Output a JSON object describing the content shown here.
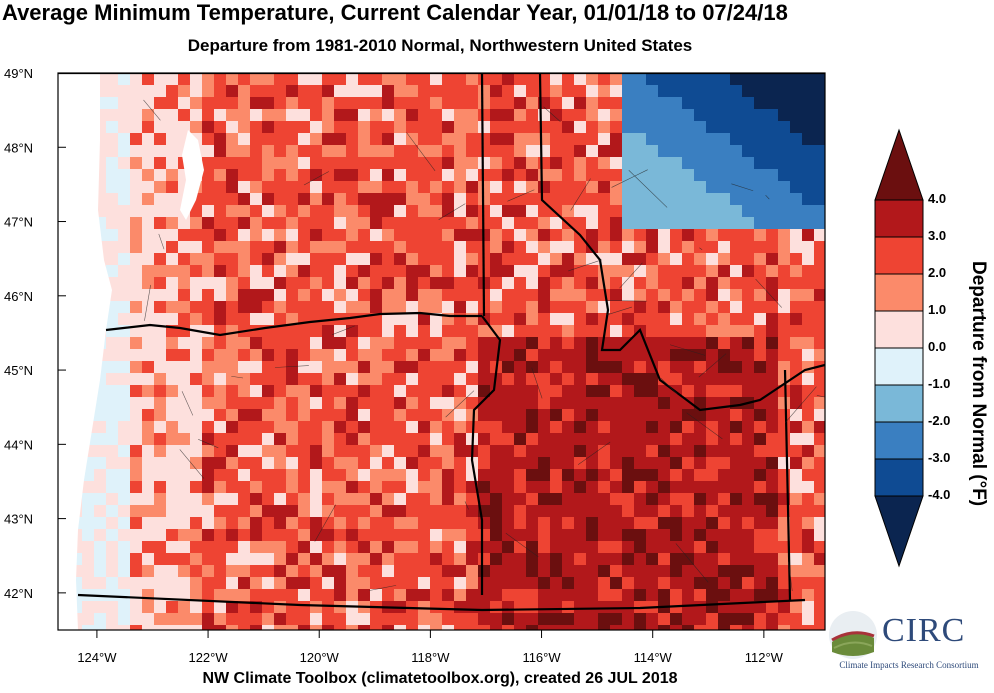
{
  "title": "Average Minimum Temperature, Current Calendar Year, 01/01/18 to 07/24/18",
  "subtitle": "Departure from 1981-2010 Normal, Northwestern United States",
  "footer": "NW Climate Toolbox (climatetoolbox.org), created 26 JUL 2018",
  "map": {
    "lat_labels": [
      "49°N",
      "48°N",
      "47°N",
      "46°N",
      "45°N",
      "44°N",
      "43°N",
      "42°N"
    ],
    "lon_labels": [
      "124°W",
      "122°W",
      "120°W",
      "118°W",
      "116°W",
      "114°W",
      "112°W"
    ],
    "lat_range": [
      41.5,
      49.0
    ],
    "lon_range": [
      -124.7,
      -110.9
    ],
    "dominant_anomaly_colors": {
      "west_oregon_washington_coast": "#fbe0dd",
      "washington_interior": "#ee4433",
      "idaho_oregon_interior": "#c9201f",
      "northern_montana": "#4a90c8"
    }
  },
  "colorbar": {
    "title": "Departure from Normal (°F)",
    "tick_labels": [
      "4.0",
      "3.0",
      "2.0",
      "1.0",
      "0.0",
      "-1.0",
      "-2.0",
      "-3.0",
      "-4.0"
    ],
    "bins": [
      {
        "color": "#6b0f0f"
      },
      {
        "color": "#b2181b"
      },
      {
        "color": "#ee4433"
      },
      {
        "color": "#fb8a6a"
      },
      {
        "color": "#fde0dd"
      },
      {
        "color": "#dff2fa"
      },
      {
        "color": "#7ab8d8"
      },
      {
        "color": "#3a7fc1"
      },
      {
        "color": "#0f4b93"
      },
      {
        "color": "#0b2550"
      }
    ]
  },
  "logo": {
    "name": "CIRC",
    "sub": "Climate Impacts Research Consortium"
  }
}
